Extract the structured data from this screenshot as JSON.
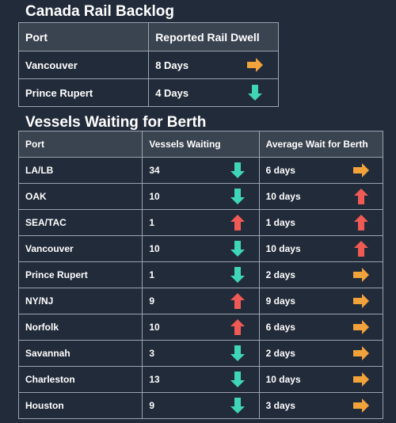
{
  "colors": {
    "background": "#222b3a",
    "header_bg": "#3a4350",
    "grid": "#9aa3ae",
    "arrow_right": "#f2a23a",
    "arrow_up": "#f05a55",
    "arrow_down": "#3fd6b8"
  },
  "rail": {
    "title": "Canada Rail Backlog",
    "headers": [
      "Port",
      "Reported Rail Dwell"
    ],
    "rows": [
      {
        "port": "Vancouver",
        "dwell": "8 Days",
        "trend": "right-arrow-icon"
      },
      {
        "port": "Prince Rupert",
        "dwell": "4 Days",
        "trend": "down-arrow-icon"
      }
    ]
  },
  "berth": {
    "title": "Vessels Waiting for Berth",
    "headers": [
      "Port",
      "Vessels Waiting",
      "Average Wait for Berth"
    ],
    "rows": [
      {
        "port": "LA/LB",
        "vessels": "34",
        "vessels_trend": "down-arrow-icon",
        "wait": "6 days",
        "wait_trend": "right-arrow-icon"
      },
      {
        "port": "OAK",
        "vessels": "10",
        "vessels_trend": "down-arrow-icon",
        "wait": "10 days",
        "wait_trend": "up-arrow-icon"
      },
      {
        "port": "SEA/TAC",
        "vessels": "1",
        "vessels_trend": "up-arrow-icon",
        "wait": "1 days",
        "wait_trend": "up-arrow-icon"
      },
      {
        "port": "Vancouver",
        "vessels": "10",
        "vessels_trend": "down-arrow-icon",
        "wait": "10 days",
        "wait_trend": "up-arrow-icon"
      },
      {
        "port": "Prince Rupert",
        "vessels": "1",
        "vessels_trend": "down-arrow-icon",
        "wait": "2 days",
        "wait_trend": "right-arrow-icon"
      },
      {
        "port": "NY/NJ",
        "vessels": "9",
        "vessels_trend": "up-arrow-icon",
        "wait": "9 days",
        "wait_trend": "right-arrow-icon"
      },
      {
        "port": "Norfolk",
        "vessels": "10",
        "vessels_trend": "up-arrow-icon",
        "wait": "6 days",
        "wait_trend": "right-arrow-icon"
      },
      {
        "port": "Savannah",
        "vessels": "3",
        "vessels_trend": "down-arrow-icon",
        "wait": "2 days",
        "wait_trend": "right-arrow-icon"
      },
      {
        "port": "Charleston",
        "vessels": "13",
        "vessels_trend": "down-arrow-icon",
        "wait": "10 days",
        "wait_trend": "right-arrow-icon"
      },
      {
        "port": "Houston",
        "vessels": "9",
        "vessels_trend": "down-arrow-icon",
        "wait": "3 days",
        "wait_trend": "right-arrow-icon"
      }
    ]
  }
}
